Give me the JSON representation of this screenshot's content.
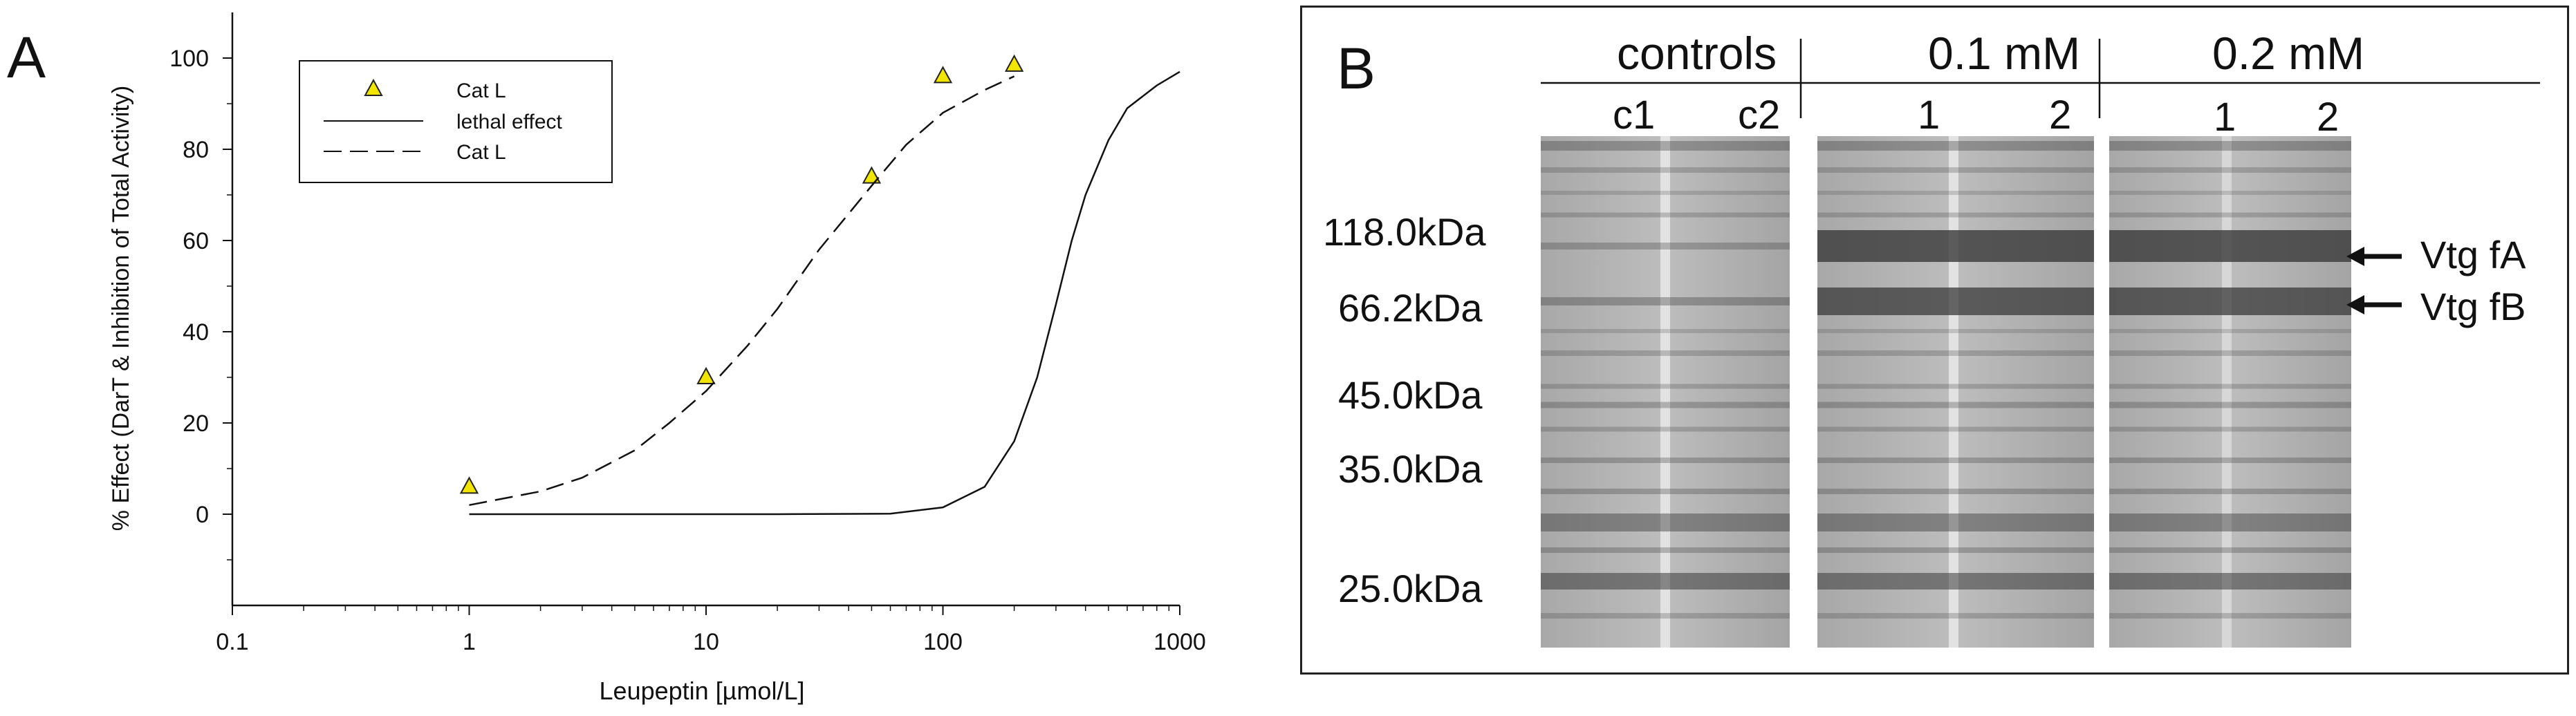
{
  "chart_data": [
    {
      "panel_label": "A",
      "type": "scatter",
      "xlabel": "Leupeptin [µmol/L]",
      "ylabel": "% Effect (DarT & Inhibition of Total Activity)",
      "x_scale": "log",
      "xlim": [
        0.1,
        1000
      ],
      "ylim": [
        -20,
        110
      ],
      "x_ticks": [
        "0.1",
        "1",
        "10",
        "100",
        "1000"
      ],
      "y_ticks": [
        "0",
        "20",
        "40",
        "60",
        "80",
        "100"
      ],
      "grid": false,
      "legend_position": "top-left",
      "legend": [
        "Cat L",
        "lethal effect",
        "Cat L"
      ],
      "series": [
        {
          "name": "Cat L",
          "style": "triangle-markers",
          "color": "#f2e600",
          "points": [
            {
              "x": 1,
              "y": 6
            },
            {
              "x": 10,
              "y": 30
            },
            {
              "x": 50,
              "y": 74
            },
            {
              "x": 100,
              "y": 96
            },
            {
              "x": 200,
              "y": 98.5
            }
          ]
        },
        {
          "name": "lethal effect",
          "style": "solid-line",
          "color": "#111111",
          "points": [
            {
              "x": 1,
              "y": 0
            },
            {
              "x": 20,
              "y": 0
            },
            {
              "x": 60,
              "y": 0.1
            },
            {
              "x": 100,
              "y": 1.5
            },
            {
              "x": 150,
              "y": 6
            },
            {
              "x": 200,
              "y": 16
            },
            {
              "x": 250,
              "y": 30
            },
            {
              "x": 300,
              "y": 46
            },
            {
              "x": 350,
              "y": 60
            },
            {
              "x": 400,
              "y": 70
            },
            {
              "x": 500,
              "y": 82
            },
            {
              "x": 600,
              "y": 89
            },
            {
              "x": 800,
              "y": 94
            },
            {
              "x": 1000,
              "y": 97
            }
          ]
        },
        {
          "name": "Cat L",
          "style": "dashed-line",
          "color": "#111111",
          "points": [
            {
              "x": 1,
              "y": 2
            },
            {
              "x": 2,
              "y": 5
            },
            {
              "x": 3,
              "y": 8
            },
            {
              "x": 5,
              "y": 14
            },
            {
              "x": 7,
              "y": 20
            },
            {
              "x": 10,
              "y": 27
            },
            {
              "x": 15,
              "y": 37
            },
            {
              "x": 20,
              "y": 45
            },
            {
              "x": 30,
              "y": 58
            },
            {
              "x": 50,
              "y": 72
            },
            {
              "x": 70,
              "y": 81
            },
            {
              "x": 100,
              "y": 88
            },
            {
              "x": 150,
              "y": 93
            },
            {
              "x": 200,
              "y": 96
            }
          ]
        }
      ]
    }
  ],
  "panel_b": {
    "panel_label": "B",
    "groups": [
      {
        "label": "controls",
        "lanes": [
          "c1",
          "c2"
        ]
      },
      {
        "label": "0.1 mM",
        "lanes": [
          "1",
          "2"
        ]
      },
      {
        "label": "0.2 mM",
        "lanes": [
          "1",
          "2"
        ]
      }
    ],
    "markers": [
      {
        "label": "118.0kDa",
        "y": 118.0
      },
      {
        "label": "66.2kDa",
        "y": 66.2
      },
      {
        "label": "45.0kDa",
        "y": 45.0
      },
      {
        "label": "35.0kDa",
        "y": 35.0
      },
      {
        "label": "25.0kDa",
        "y": 25.0
      }
    ],
    "annotations": [
      "Vtg fA",
      "Vtg fB"
    ]
  }
}
